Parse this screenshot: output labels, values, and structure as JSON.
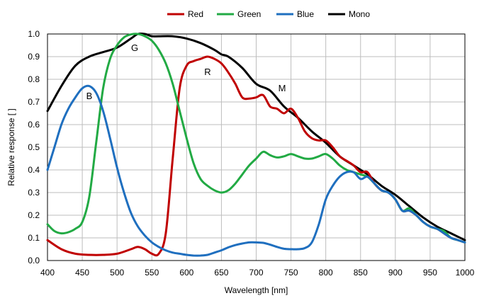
{
  "chart_data": {
    "type": "line",
    "xlabel": "Wavelength [nm]",
    "ylabel": "Relative response [ ]",
    "xlim": [
      400,
      1000
    ],
    "ylim": [
      0,
      1.0
    ],
    "x_ticks": [
      "400",
      "450",
      "500",
      "550",
      "600",
      "650",
      "700",
      "750",
      "800",
      "850",
      "900",
      "950",
      "1000"
    ],
    "y_ticks": [
      "0.0",
      "0.1",
      "0.2",
      "0.3",
      "0.4",
      "0.5",
      "0.6",
      "0.7",
      "0.8",
      "0.9",
      "1.0"
    ],
    "grid": true,
    "legend_position": "top",
    "series": [
      {
        "name": "Red",
        "color": "#c00000",
        "label": "R",
        "x": [
          400,
          420,
          440,
          460,
          480,
          500,
          520,
          530,
          540,
          550,
          560,
          570,
          580,
          590,
          600,
          610,
          620,
          630,
          640,
          650,
          660,
          670,
          680,
          690,
          700,
          710,
          720,
          730,
          740,
          750,
          760,
          770,
          780,
          790,
          800,
          810,
          820,
          830,
          840,
          850,
          860,
          870,
          880,
          890,
          900,
          910,
          920,
          930,
          940,
          950,
          960,
          970,
          980,
          990,
          1000
        ],
        "y": [
          0.09,
          0.05,
          0.03,
          0.025,
          0.025,
          0.03,
          0.05,
          0.06,
          0.05,
          0.03,
          0.03,
          0.12,
          0.45,
          0.76,
          0.86,
          0.88,
          0.89,
          0.9,
          0.89,
          0.87,
          0.83,
          0.78,
          0.72,
          0.715,
          0.72,
          0.73,
          0.68,
          0.67,
          0.65,
          0.67,
          0.63,
          0.57,
          0.54,
          0.53,
          0.53,
          0.5,
          0.46,
          0.44,
          0.42,
          0.39,
          0.39,
          0.34,
          0.31,
          0.3,
          0.27,
          0.22,
          0.22,
          0.2,
          0.17,
          0.15,
          0.14,
          0.12,
          0.1,
          0.09,
          0.08
        ]
      },
      {
        "name": "Green",
        "color": "#22aa44",
        "label": "G",
        "x": [
          400,
          410,
          420,
          430,
          440,
          450,
          460,
          470,
          480,
          490,
          500,
          510,
          520,
          530,
          540,
          550,
          560,
          570,
          580,
          590,
          600,
          610,
          620,
          630,
          640,
          650,
          660,
          670,
          680,
          690,
          700,
          710,
          720,
          730,
          740,
          750,
          760,
          770,
          780,
          790,
          800,
          810,
          820,
          830,
          840,
          850,
          860,
          870,
          880,
          890,
          900,
          910,
          920,
          930,
          940,
          950,
          960,
          970,
          980,
          990,
          1000
        ],
        "y": [
          0.16,
          0.13,
          0.12,
          0.125,
          0.14,
          0.17,
          0.28,
          0.52,
          0.76,
          0.89,
          0.95,
          0.985,
          0.998,
          1.0,
          0.99,
          0.97,
          0.93,
          0.87,
          0.78,
          0.66,
          0.54,
          0.43,
          0.36,
          0.33,
          0.31,
          0.3,
          0.31,
          0.34,
          0.38,
          0.42,
          0.45,
          0.48,
          0.465,
          0.455,
          0.46,
          0.47,
          0.46,
          0.45,
          0.45,
          0.46,
          0.47,
          0.45,
          0.42,
          0.4,
          0.39,
          0.38,
          0.37,
          0.34,
          0.31,
          0.3,
          0.27,
          0.22,
          0.23,
          0.2,
          0.17,
          0.15,
          0.14,
          0.13,
          0.1,
          0.09,
          0.08
        ]
      },
      {
        "name": "Blue",
        "color": "#1f6fbf",
        "label": "B",
        "x": [
          400,
          410,
          420,
          430,
          440,
          450,
          460,
          470,
          480,
          490,
          500,
          510,
          520,
          530,
          540,
          550,
          560,
          570,
          580,
          590,
          600,
          610,
          620,
          630,
          640,
          650,
          660,
          670,
          680,
          690,
          700,
          710,
          720,
          730,
          740,
          750,
          760,
          770,
          780,
          790,
          800,
          810,
          820,
          830,
          840,
          850,
          860,
          870,
          880,
          890,
          900,
          910,
          920,
          930,
          940,
          950,
          960,
          970,
          980,
          990,
          1000
        ],
        "y": [
          0.4,
          0.5,
          0.6,
          0.67,
          0.72,
          0.76,
          0.77,
          0.74,
          0.66,
          0.54,
          0.41,
          0.3,
          0.21,
          0.15,
          0.11,
          0.08,
          0.06,
          0.045,
          0.035,
          0.03,
          0.025,
          0.022,
          0.022,
          0.025,
          0.035,
          0.045,
          0.058,
          0.068,
          0.075,
          0.08,
          0.08,
          0.078,
          0.07,
          0.06,
          0.052,
          0.05,
          0.05,
          0.055,
          0.08,
          0.16,
          0.27,
          0.33,
          0.37,
          0.39,
          0.39,
          0.36,
          0.37,
          0.34,
          0.31,
          0.3,
          0.27,
          0.22,
          0.22,
          0.2,
          0.17,
          0.15,
          0.14,
          0.12,
          0.1,
          0.09,
          0.08
        ]
      },
      {
        "name": "Mono",
        "color": "#000000",
        "label": "M",
        "x": [
          400,
          420,
          440,
          460,
          480,
          500,
          520,
          530,
          540,
          550,
          560,
          580,
          600,
          620,
          640,
          650,
          660,
          680,
          700,
          720,
          740,
          760,
          780,
          800,
          820,
          840,
          860,
          880,
          900,
          920,
          940,
          960,
          980,
          1000
        ],
        "y": [
          0.66,
          0.77,
          0.86,
          0.9,
          0.92,
          0.94,
          0.98,
          1.0,
          1.0,
          0.99,
          0.99,
          0.99,
          0.98,
          0.96,
          0.93,
          0.91,
          0.9,
          0.85,
          0.78,
          0.75,
          0.68,
          0.63,
          0.57,
          0.52,
          0.46,
          0.42,
          0.38,
          0.33,
          0.29,
          0.24,
          0.19,
          0.15,
          0.12,
          0.09
        ]
      }
    ]
  }
}
